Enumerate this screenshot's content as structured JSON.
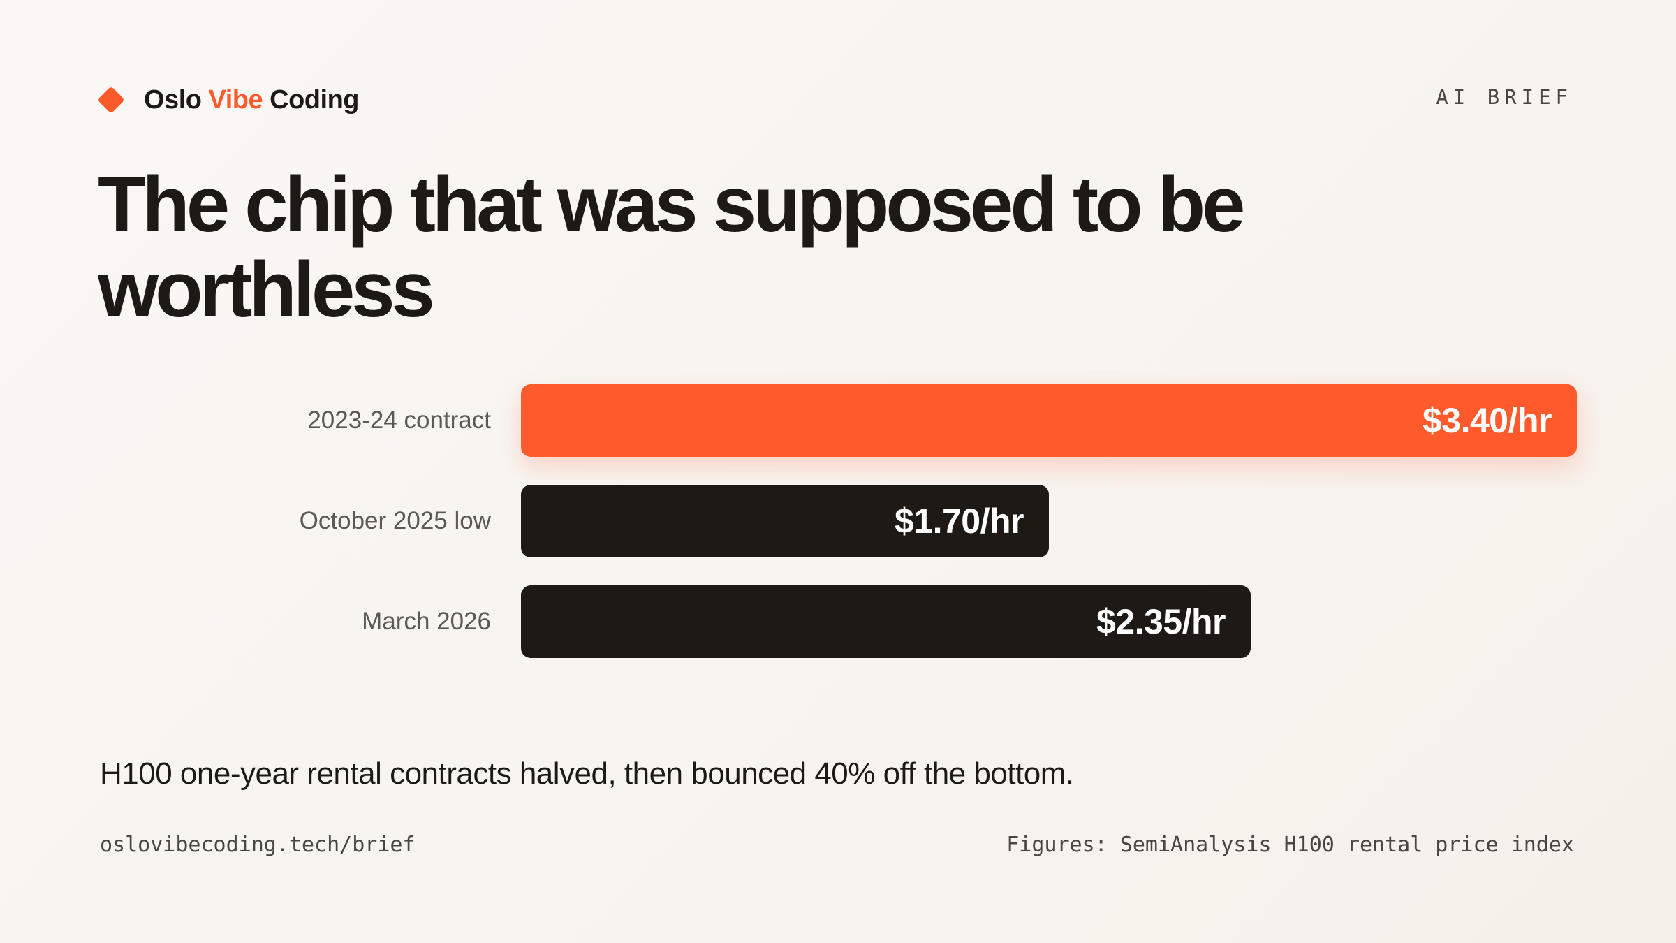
{
  "brand": {
    "part1": "Oslo ",
    "accent": "Vibe",
    "part2": " Coding"
  },
  "tag": "AI BRIEF",
  "title": "The chip that was supposed to be worthless",
  "chart_data": {
    "type": "bar",
    "orientation": "horizontal",
    "categories": [
      "2023-24 contract",
      "October 2025 low",
      "March 2026"
    ],
    "values": [
      3.4,
      1.7,
      2.35
    ],
    "value_labels": [
      "$3.40/hr",
      "$1.70/hr",
      "$2.35/hr"
    ],
    "unit": "$/hr",
    "highlight_index": 0,
    "colors": {
      "highlight": "#ff5a2b",
      "default": "#1e1915"
    }
  },
  "caption": "H100 one-year rental contracts halved, then bounced 40% off the bottom.",
  "footer": {
    "url": "oslovibecoding.tech/brief",
    "source": "Figures: SemiAnalysis H100 rental price index"
  }
}
